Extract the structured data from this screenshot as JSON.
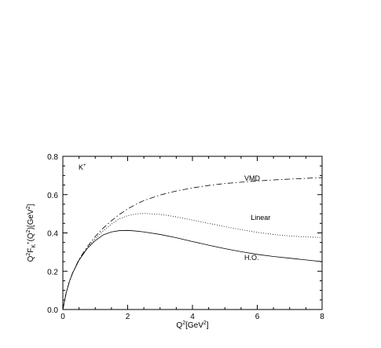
{
  "chart_data": {
    "type": "line",
    "title": "",
    "xlabel_main": "Q",
    "xlabel_sup": "2",
    "xlabel_unit": "[GeV",
    "xlabel_unit_sup": "2",
    "xlabel_close": "]",
    "ylabel_parts": [
      "Q",
      "2",
      "F",
      "K",
      "+",
      "(Q",
      "2",
      ")[GeV",
      "2",
      "]"
    ],
    "xlim": [
      0,
      8
    ],
    "ylim": [
      0,
      0.8
    ],
    "x_ticks": [
      0,
      2,
      4,
      6,
      8
    ],
    "x_tick_labels": [
      "0",
      "2",
      "4",
      "6",
      "8"
    ],
    "y_ticks": [
      0,
      0.2,
      0.4,
      0.6,
      0.8
    ],
    "y_tick_labels": [
      "0.0",
      "0.2",
      "0.4",
      "0.6",
      "0.8"
    ],
    "grid": false,
    "particle_label_main": "K",
    "particle_label_sup": "+",
    "x": [
      0,
      0.1,
      0.2,
      0.3,
      0.5,
      0.75,
      1.0,
      1.25,
      1.5,
      1.75,
      2.0,
      2.25,
      2.5,
      3.0,
      3.5,
      4.0,
      4.5,
      5.0,
      5.5,
      6.0,
      6.5,
      7.0,
      7.5,
      8.0
    ],
    "series": [
      {
        "name": "VMD",
        "style": "dashdot",
        "values": [
          0.0,
          0.085,
          0.145,
          0.19,
          0.262,
          0.327,
          0.381,
          0.426,
          0.464,
          0.497,
          0.525,
          0.549,
          0.569,
          0.598,
          0.619,
          0.635,
          0.648,
          0.658,
          0.665,
          0.671,
          0.677,
          0.681,
          0.685,
          0.689
        ]
      },
      {
        "name": "Linear",
        "style": "dotted",
        "values": [
          0.0,
          0.085,
          0.145,
          0.19,
          0.258,
          0.322,
          0.37,
          0.412,
          0.446,
          0.474,
          0.49,
          0.499,
          0.502,
          0.497,
          0.484,
          0.467,
          0.45,
          0.433,
          0.417,
          0.403,
          0.392,
          0.384,
          0.379,
          0.376
        ]
      },
      {
        "name": "H.O.",
        "style": "solid",
        "values": [
          0.0,
          0.085,
          0.145,
          0.19,
          0.258,
          0.318,
          0.36,
          0.39,
          0.405,
          0.412,
          0.413,
          0.41,
          0.405,
          0.392,
          0.375,
          0.355,
          0.336,
          0.318,
          0.302,
          0.288,
          0.277,
          0.268,
          0.259,
          0.25
        ]
      }
    ],
    "annotations": [
      {
        "text": "VMD",
        "series": "VMD",
        "x": 5.6,
        "y": 0.685
      },
      {
        "text": "Linear",
        "series": "Linear",
        "x": 5.8,
        "y": 0.48
      },
      {
        "text": "H.O.",
        "series": "H.O.",
        "x": 5.6,
        "y": 0.27
      }
    ]
  }
}
